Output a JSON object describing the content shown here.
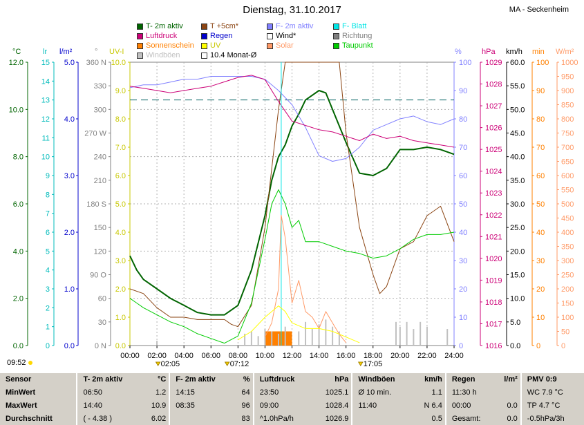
{
  "header": {
    "title": "Dienstag, 31.10.2017",
    "station": "MA - Seckenheim"
  },
  "legend": [
    {
      "label": "T- 2m aktiv",
      "color": "#006400"
    },
    {
      "label": "T +5cm*",
      "color": "#8b4513"
    },
    {
      "label": "F- 2m aktiv",
      "color": "#8080ff"
    },
    {
      "label": "F- Blatt",
      "color": "#00e5e5"
    },
    {
      "label": "Luftdruck",
      "color": "#cc0077"
    },
    {
      "label": "Regen",
      "color": "#0000cc"
    },
    {
      "label": "Wind*",
      "color": "#ffffff"
    },
    {
      "label": "Richtung",
      "color": "#808080"
    },
    {
      "label": "Sonnenschein",
      "color": "#ff8000"
    },
    {
      "label": "UV",
      "color": "#ffff00"
    },
    {
      "label": "Solar",
      "color": "#ff9966"
    },
    {
      "label": "Taupunkt",
      "color": "#00cc00"
    },
    {
      "label": "Windböen",
      "color": "#c0c0c0"
    },
    {
      "label": "10.4 Monat-Ø",
      "color": "#ffffff"
    }
  ],
  "units": {
    "temp": "°C",
    "lr": "lr",
    "rain": "l/m²",
    "dir": "°",
    "uvi": "UV-I",
    "hum": "%",
    "press": "hPa",
    "wind": "km/h",
    "sun": "min",
    "solar": "W/m²"
  },
  "axes": {
    "temp": [
      "12.0",
      "10.0",
      "8.0",
      "6.0",
      "4.0",
      "2.0",
      "0.0"
    ],
    "lr": [
      "15",
      "14",
      "13",
      "12",
      "11",
      "10",
      "9",
      "8",
      "7",
      "6",
      "5",
      "4",
      "3",
      "2",
      "1",
      "0"
    ],
    "rain": [
      "5.0",
      "4.0",
      "3.0",
      "2.0",
      "1.0",
      "0.0"
    ],
    "dir": [
      "360 N",
      "330",
      "300",
      "270 W",
      "240",
      "210",
      "180 S",
      "150",
      "120",
      "90 O",
      "60",
      "30",
      "0 N"
    ],
    "uvi": [
      "10.0",
      "9.0",
      "8.0",
      "7.0",
      "6.0",
      "5.0",
      "4.0",
      "3.0",
      "2.0",
      "1.0",
      "0.0"
    ],
    "hum": [
      "100",
      "90",
      "80",
      "70",
      "60",
      "50",
      "40",
      "30",
      "20",
      "10",
      "0"
    ],
    "press": [
      "1029",
      "1028",
      "1027",
      "1026",
      "1025",
      "1024",
      "1023",
      "1022",
      "1021",
      "1020",
      "1019",
      "1018",
      "1017",
      "1016"
    ],
    "wind": [
      "60.0",
      "55.0",
      "50.0",
      "45.0",
      "40.0",
      "35.0",
      "30.0",
      "25.0",
      "20.0",
      "15.0",
      "10.0",
      "5.0",
      "0.0"
    ],
    "sun": [
      "100",
      "90",
      "80",
      "70",
      "60",
      "50",
      "40",
      "30",
      "20",
      "10",
      "0"
    ],
    "solar": [
      "1000",
      "950",
      "900",
      "850",
      "800",
      "750",
      "700",
      "650",
      "600",
      "550",
      "500",
      "450",
      "400",
      "350",
      "300",
      "250",
      "200",
      "150",
      "100",
      "50",
      "0"
    ],
    "x": [
      "00:00",
      "02:00",
      "04:00",
      "06:00",
      "08:00",
      "10:00",
      "12:00",
      "14:00",
      "16:00",
      "18:00",
      "20:00",
      "22:00",
      "24:00"
    ]
  },
  "events": {
    "sunrise_left": "09:52",
    "e1": "02:05",
    "e2": "07:12",
    "e3": "17:05"
  },
  "chart_data": {
    "type": "line",
    "x_unit": "hour",
    "xlim": [
      0,
      24
    ],
    "month_avg_temp": 10.4,
    "series": [
      {
        "name": "T- 2m aktiv",
        "axis": "temp",
        "color": "#006400",
        "width": 2,
        "x": [
          0,
          0.5,
          1,
          2,
          3,
          4,
          5,
          6,
          7,
          8,
          9,
          10,
          10.5,
          11,
          11.5,
          12,
          12.5,
          13,
          14,
          14.5,
          15,
          16,
          17,
          18,
          19,
          20,
          21,
          22,
          23,
          24
        ],
        "y": [
          3.8,
          3.2,
          2.8,
          2.4,
          2.0,
          1.7,
          1.4,
          1.3,
          1.3,
          1.7,
          3.2,
          5.5,
          7.0,
          8.0,
          8.5,
          9.3,
          9.8,
          10.4,
          10.8,
          10.7,
          10.0,
          8.6,
          7.3,
          7.2,
          7.5,
          8.3,
          8.3,
          8.4,
          8.3,
          8.1
        ]
      },
      {
        "name": "T +5cm*",
        "axis": "temp",
        "color": "#8b4513",
        "width": 1,
        "x": [
          0,
          1,
          2,
          3,
          4,
          5,
          6,
          7,
          7.5,
          8,
          9,
          10,
          10.5,
          11,
          11.5,
          12,
          12.5,
          13,
          14,
          15,
          15.5,
          16,
          17,
          18,
          18.5,
          19,
          20,
          21,
          22,
          23,
          24
        ],
        "y": [
          2.4,
          2.2,
          1.6,
          1.2,
          1.2,
          1.1,
          1.1,
          1.1,
          0.9,
          0.8,
          1.7,
          5.0,
          7.5,
          10.0,
          13.0,
          12.5,
          12.5,
          12.0,
          12.8,
          15.0,
          13.0,
          9.0,
          5.0,
          3.0,
          2.2,
          2.5,
          4.1,
          4.4,
          5.5,
          5.9,
          4.4
        ]
      },
      {
        "name": "F- 2m aktiv",
        "axis": "hum",
        "color": "#8080ff",
        "width": 1,
        "x": [
          0,
          1,
          2,
          3,
          4,
          5,
          6,
          7,
          8,
          9,
          10,
          11,
          12,
          13,
          14,
          15,
          16,
          17,
          18,
          19,
          20,
          21,
          22,
          23,
          24
        ],
        "y": [
          91,
          92,
          92,
          93,
          94,
          94,
          95,
          95,
          95,
          95,
          94,
          90,
          85,
          77,
          67,
          65,
          66,
          70,
          76,
          78,
          80,
          81,
          79,
          78,
          80
        ]
      },
      {
        "name": "Luftdruck",
        "axis": "press",
        "color": "#cc0077",
        "width": 1,
        "x": [
          0,
          1,
          2,
          3,
          4,
          5,
          6,
          7,
          8,
          9,
          10,
          11,
          12,
          13,
          14,
          15,
          16,
          17,
          18,
          19,
          20,
          21,
          22,
          23,
          24
        ],
        "y": [
          1027.9,
          1027.8,
          1027.7,
          1027.6,
          1027.7,
          1027.8,
          1027.9,
          1028.1,
          1028.3,
          1028.4,
          1028.2,
          1027.2,
          1026.3,
          1026.1,
          1025.9,
          1025.8,
          1025.6,
          1025.4,
          1025.7,
          1025.5,
          1025.6,
          1025.4,
          1025.3,
          1025.2,
          1025.1
        ]
      },
      {
        "name": "Taupunkt",
        "axis": "temp",
        "color": "#00cc00",
        "width": 1,
        "x": [
          0,
          0.5,
          1,
          2,
          3,
          4,
          5,
          6,
          7,
          8,
          9,
          10,
          10.5,
          11,
          11.5,
          12,
          12.5,
          13,
          14,
          15,
          16,
          17,
          18,
          19,
          20,
          21,
          22,
          23,
          24
        ],
        "y": [
          2.0,
          1.8,
          1.6,
          1.3,
          1.0,
          0.8,
          0.5,
          0.3,
          0.1,
          0.4,
          1.8,
          4.5,
          6.0,
          6.6,
          6.0,
          5.0,
          5.3,
          4.4,
          4.4,
          4.2,
          4.0,
          3.9,
          3.7,
          3.8,
          4.1,
          4.5,
          4.7,
          4.7,
          4.8
        ]
      },
      {
        "name": "F- Blatt",
        "axis": "hum",
        "color": "#00e5e5",
        "width": 1,
        "x": [
          11.2,
          11.2
        ],
        "y": [
          0,
          100
        ]
      },
      {
        "name": "Solar",
        "axis": "solar",
        "color": "#ff9966",
        "width": 1,
        "x": [
          10,
          10.5,
          11,
          11.2,
          11.5,
          12,
          12.5,
          13,
          13.5,
          14,
          14.5,
          15,
          15.5,
          16
        ],
        "y": [
          30,
          80,
          200,
          460,
          380,
          150,
          230,
          120,
          100,
          60,
          120,
          80,
          40,
          10
        ]
      },
      {
        "name": "UV",
        "axis": "uvi",
        "color": "#ffff00",
        "width": 1,
        "x": [
          8,
          9,
          10,
          11,
          11.5,
          12,
          13,
          14,
          15,
          16,
          17
        ],
        "y": [
          0.2,
          0.5,
          1.0,
          1.4,
          1.2,
          0.8,
          0.6,
          0.6,
          0.5,
          0.3,
          0.1
        ]
      }
    ],
    "sunshine_bar": {
      "name": "Sonnenschein",
      "axis": "sun",
      "color": "#ff8000",
      "x_start": 10.0,
      "x_end": 12.0,
      "value": 5
    },
    "gusts": {
      "name": "Windböen",
      "axis": "wind",
      "color": "#c0c0c0",
      "x": [
        2.0,
        8.5,
        9.0,
        9.5,
        10.0,
        10.5,
        11.0,
        11.5,
        12.5,
        13.0,
        13.5,
        14.0,
        14.5,
        15.0,
        15.5,
        19.7,
        20.0,
        20.5,
        21.0,
        21.5,
        22.0,
        23.5
      ],
      "y": [
        1.0,
        2.5,
        3.0,
        2.0,
        3.5,
        3.0,
        2.5,
        4.0,
        3.0,
        5.0,
        3.5,
        4.5,
        5.5,
        4.0,
        3.0,
        5.0,
        4.0,
        5.0,
        3.5,
        5.0,
        4.0,
        3.5
      ]
    }
  },
  "stats": {
    "headers": [
      {
        "label": "Sensor",
        "unit": ""
      },
      {
        "label": "T- 2m aktiv",
        "unit": "°C"
      },
      {
        "label": "F- 2m aktiv",
        "unit": "%"
      },
      {
        "label": "Luftdruck",
        "unit": "hPa"
      },
      {
        "label": "Windböen",
        "unit": "km/h"
      },
      {
        "label": "Regen",
        "unit": "l/m²"
      },
      {
        "label": "PMV 0:9",
        "unit": ""
      }
    ],
    "rows": [
      {
        "label": "MinWert",
        "cells": [
          [
            "06:50",
            "1.2"
          ],
          [
            "14:15",
            "64"
          ],
          [
            "23:50",
            "1025.1"
          ],
          [
            "Ø 10 min.",
            "1.1"
          ],
          [
            "11:30 h",
            ""
          ],
          [
            "WC 7.9 °C",
            ""
          ]
        ]
      },
      {
        "label": "MaxWert",
        "cells": [
          [
            "14:40",
            "10.9"
          ],
          [
            "08:35",
            "96"
          ],
          [
            "09:00",
            "1028.4"
          ],
          [
            "11:40",
            "N 6.4"
          ],
          [
            "00:00",
            "0.0"
          ],
          [
            "TP 4.7 °C",
            ""
          ]
        ]
      },
      {
        "label": "Durchschnitt",
        "cells": [
          [
            "( - 4.38 )",
            "6.02"
          ],
          [
            "",
            "83"
          ],
          [
            "^1.0hPa/h",
            "1026.9"
          ],
          [
            "",
            "0.5"
          ],
          [
            "Gesamt:",
            "0.0"
          ],
          [
            "-0.5hPa/3h",
            ""
          ]
        ]
      }
    ]
  }
}
